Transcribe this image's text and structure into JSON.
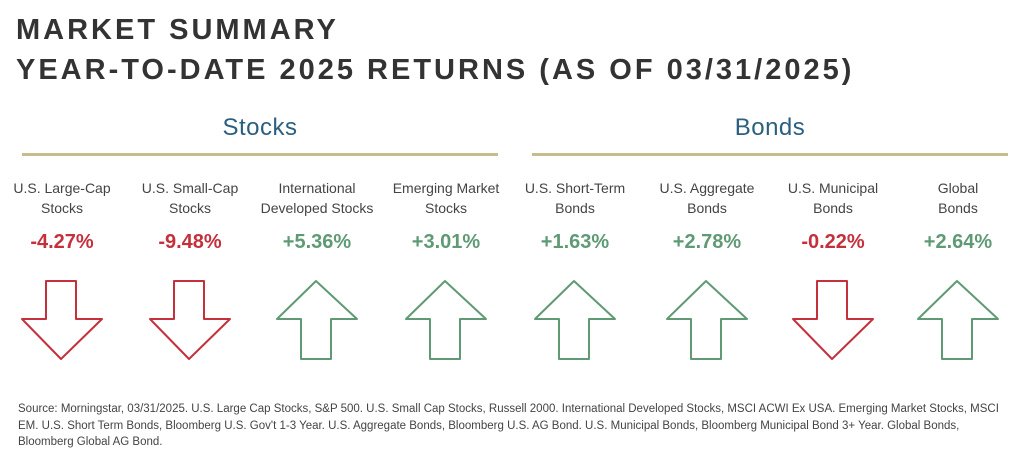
{
  "header": {
    "title_line1": "MARKET SUMMARY",
    "title_line2": "YEAR-TO-DATE 2025 RETURNS (AS OF 03/31/2025)"
  },
  "colors": {
    "negative": "#c4313c",
    "positive": "#5f9a74",
    "section": "#2b5f80",
    "rule": "#c9bb8e"
  },
  "chart_data": {
    "type": "table",
    "title": "Year-to-Date 2025 Returns (as of 03/31/2025)",
    "groups": [
      {
        "name": "Stocks",
        "items": [
          {
            "label_line1": "U.S. Large-Cap",
            "label_line2": "Stocks",
            "display": "-4.27%",
            "value": -4.27,
            "direction": "down"
          },
          {
            "label_line1": "U.S. Small-Cap",
            "label_line2": "Stocks",
            "display": "-9.48%",
            "value": -9.48,
            "direction": "down"
          },
          {
            "label_line1": "International",
            "label_line2": "Developed Stocks",
            "display": "+5.36%",
            "value": 5.36,
            "direction": "up"
          },
          {
            "label_line1": "Emerging Market",
            "label_line2": "Stocks",
            "display": "+3.01%",
            "value": 3.01,
            "direction": "up"
          }
        ]
      },
      {
        "name": "Bonds",
        "items": [
          {
            "label_line1": "U.S. Short-Term",
            "label_line2": "Bonds",
            "display": "+1.63%",
            "value": 1.63,
            "direction": "up"
          },
          {
            "label_line1": "U.S. Aggregate",
            "label_line2": "Bonds",
            "display": "+2.78%",
            "value": 2.78,
            "direction": "up"
          },
          {
            "label_line1": "U.S. Municipal",
            "label_line2": "Bonds",
            "display": "-0.22%",
            "value": -0.22,
            "direction": "down"
          },
          {
            "label_line1": "Global",
            "label_line2": "Bonds",
            "display": "+2.64%",
            "value": 2.64,
            "direction": "up"
          }
        ]
      }
    ]
  },
  "footer": {
    "source": "Source: Morningstar, 03/31/2025. U.S. Large Cap Stocks, S&P 500. U.S. Small Cap Stocks, Russell 2000. International Developed Stocks, MSCI ACWI Ex USA. Emerging Market Stocks, MSCI EM. U.S. Short Term Bonds, Bloomberg U.S. Gov't 1-3 Year. U.S. Aggregate Bonds, Bloomberg U.S. AG Bond. U.S. Municipal Bonds, Bloomberg Municipal Bond 3+ Year. Global Bonds, Bloomberg Global AG Bond."
  }
}
